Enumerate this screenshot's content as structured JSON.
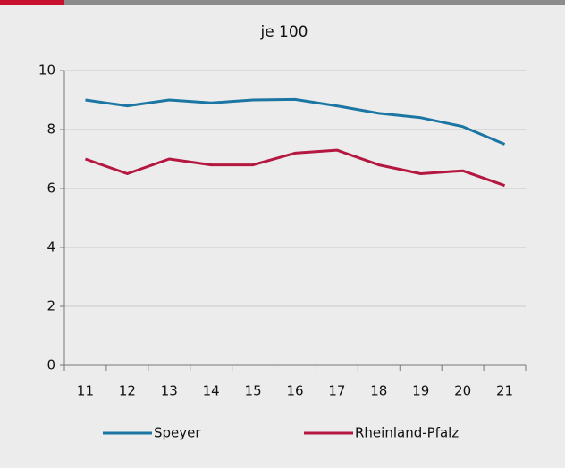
{
  "chart_data": {
    "type": "line",
    "title": "je 100",
    "categories": [
      "11",
      "12",
      "13",
      "14",
      "15",
      "16",
      "17",
      "18",
      "19",
      "20",
      "21"
    ],
    "series": [
      {
        "name": "Speyer",
        "color": "#1b76a3",
        "values": [
          9.0,
          8.8,
          9.0,
          8.9,
          9.0,
          9.02,
          8.8,
          8.55,
          8.4,
          8.1,
          7.5
        ]
      },
      {
        "name": "Rheinland-Pfalz",
        "color": "#b4173f",
        "values": [
          7.0,
          6.5,
          7.0,
          6.8,
          6.8,
          7.2,
          7.3,
          6.8,
          6.5,
          6.6,
          6.1
        ]
      }
    ],
    "ylim": [
      0,
      10
    ],
    "yticks": [
      0,
      2,
      4,
      6,
      8,
      10
    ],
    "grid": true,
    "legend": "bottom"
  }
}
